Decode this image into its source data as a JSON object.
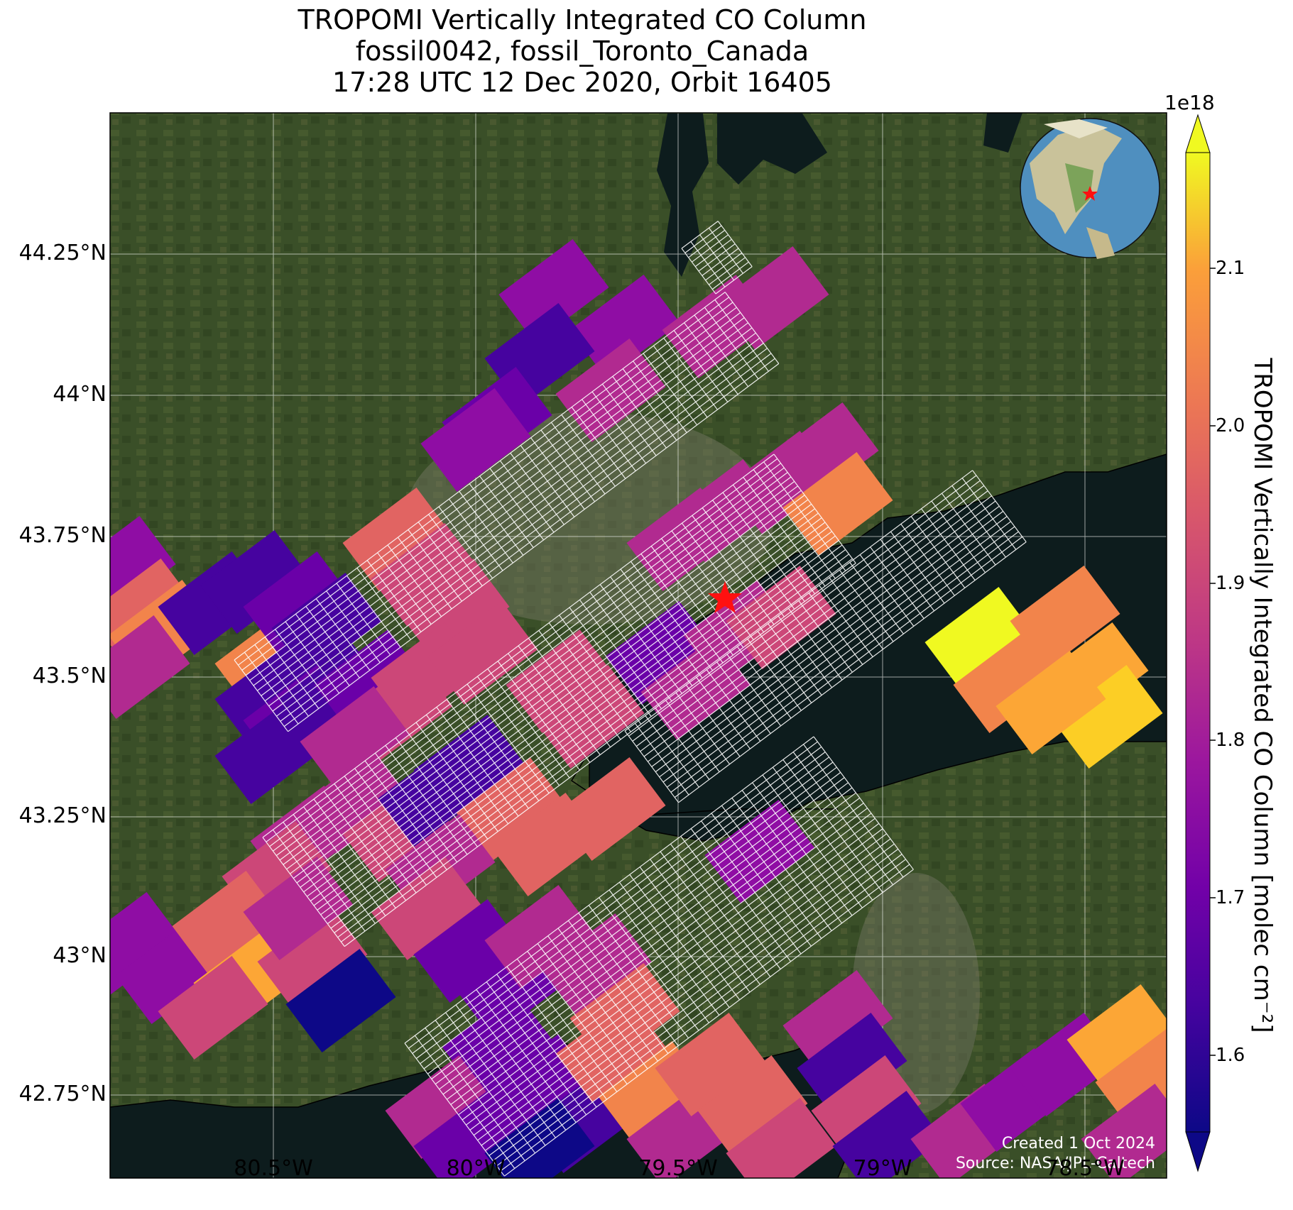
{
  "title": {
    "line1": "TROPOMI Vertically Integrated CO Column",
    "line2": "fossil0042, fossil_Toronto_Canada",
    "line3": "17:28 UTC 12 Dec 2020, Orbit 16405"
  },
  "map": {
    "lat_labels": [
      "44.25°N",
      "44°N",
      "43.75°N",
      "43.5°N",
      "43.25°N",
      "43°N",
      "42.75°N"
    ],
    "lon_labels": [
      "80.5°W",
      "80°W",
      "79.5°W",
      "79°W",
      "78.5°W"
    ],
    "credit_line1": "Created 1 Oct 2024",
    "credit_line2": "Source: NASA/JPL-Caltech",
    "site_marker": "red-star",
    "inset": "globe-icon"
  },
  "colorbar": {
    "exponent": "1e18",
    "label": "TROPOMI Vertically Integrated CO Column [molec cm⁻²]",
    "ticks": [
      "1.6",
      "1.7",
      "1.8",
      "1.9",
      "2.0",
      "2.1"
    ],
    "colormap": "plasma",
    "range": [
      1.55,
      2.18
    ]
  },
  "colors": {
    "land": "#3b5029",
    "water": "#0d1c1d",
    "grid": "#ffffff",
    "marker": "#ff0000"
  }
}
